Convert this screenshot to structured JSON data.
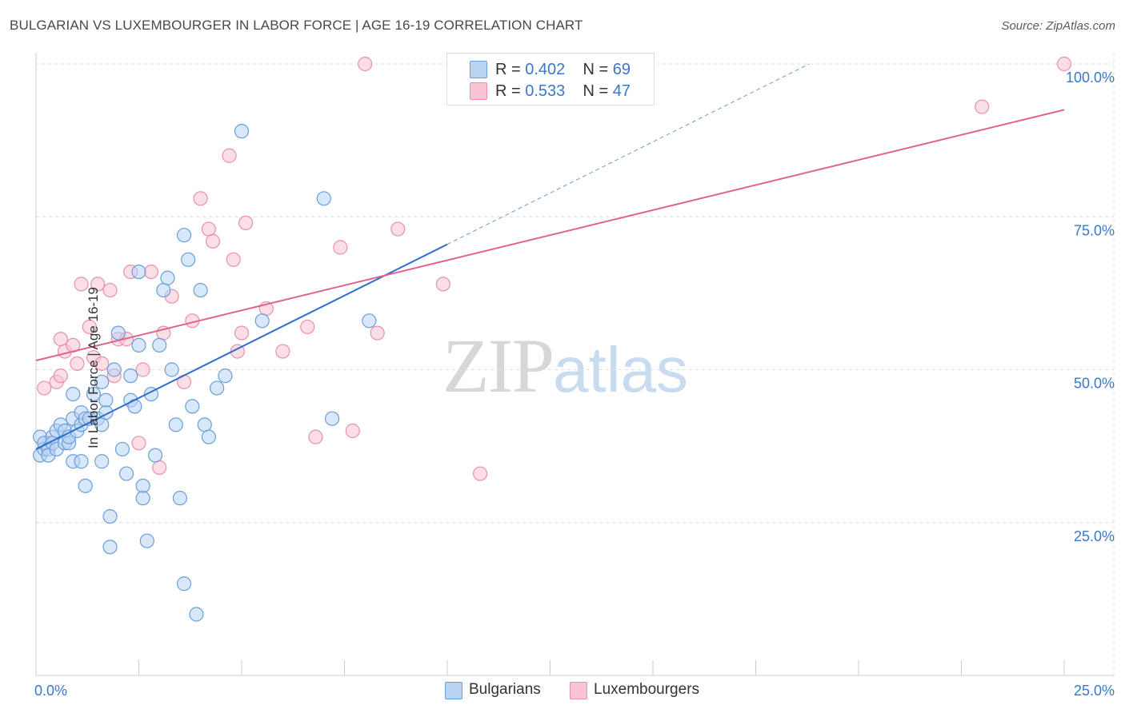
{
  "title": "BULGARIAN VS LUXEMBOURGER IN LABOR FORCE | AGE 16-19 CORRELATION CHART",
  "source": "Source: ZipAtlas.com",
  "watermark": {
    "zip": "ZIP",
    "atlas": "atlas"
  },
  "legend_top": {
    "rows": [
      {
        "r_label": "R =",
        "r_value": "0.402",
        "n_label": "N =",
        "n_value": "69"
      },
      {
        "r_label": "R =",
        "r_value": "0.533",
        "n_label": "N =",
        "n_value": "47"
      }
    ]
  },
  "legend_bottom": [
    "Bulgarians",
    "Luxembourgers"
  ],
  "colors": {
    "bulgarians_fill": "#b8d3f4",
    "bulgarians_stroke": "#6a9fd8",
    "bulgarians_line": "#2f6fc9",
    "luxembourgers_fill": "#f9c3d4",
    "luxembourgers_stroke": "#e890ae",
    "luxembourgers_line": "#e0628c",
    "tick_label": "#3a78c7",
    "grid": "#dddddd"
  },
  "chart_data": {
    "type": "scatter",
    "title": "BULGARIAN VS LUXEMBOURGER IN LABOR FORCE | AGE 16-19 CORRELATION CHART",
    "xlabel": "",
    "ylabel": "In Labor Force | Age 16-19",
    "xlim": [
      0,
      25
    ],
    "ylim": [
      0,
      102
    ],
    "x_tick_labels": [
      "0.0%",
      "25.0%"
    ],
    "y_ticks": [
      25,
      50,
      75,
      100
    ],
    "y_tick_labels": [
      "25.0%",
      "50.0%",
      "75.0%",
      "100.0%"
    ],
    "grid": "horizontal dashed",
    "legend_position": "top-center and bottom-center",
    "series": [
      {
        "name": "Bulgarians",
        "R": 0.402,
        "N": 69,
        "trend": {
          "x0": 0.0,
          "y0": 37.0,
          "x1": 10.0,
          "y1": 70.5,
          "dashed_to_x": 18.8,
          "dashed_to_y": 100.0
        },
        "points": [
          [
            0.1,
            36
          ],
          [
            0.1,
            39
          ],
          [
            0.2,
            37
          ],
          [
            0.2,
            38
          ],
          [
            0.3,
            37
          ],
          [
            0.3,
            36
          ],
          [
            0.4,
            39
          ],
          [
            0.4,
            38
          ],
          [
            0.5,
            37
          ],
          [
            0.5,
            40
          ],
          [
            0.6,
            41
          ],
          [
            0.7,
            40
          ],
          [
            0.7,
            38
          ],
          [
            0.8,
            38
          ],
          [
            0.8,
            39
          ],
          [
            0.9,
            42
          ],
          [
            0.9,
            35
          ],
          [
            1.1,
            35
          ],
          [
            1.2,
            31
          ],
          [
            0.9,
            46
          ],
          [
            1.0,
            40
          ],
          [
            1.1,
            41
          ],
          [
            1.1,
            43
          ],
          [
            1.2,
            42
          ],
          [
            1.3,
            42
          ],
          [
            1.4,
            46
          ],
          [
            1.5,
            42
          ],
          [
            1.6,
            41
          ],
          [
            1.6,
            48
          ],
          [
            1.6,
            35
          ],
          [
            1.7,
            45
          ],
          [
            1.7,
            43
          ],
          [
            1.8,
            26
          ],
          [
            1.8,
            21
          ],
          [
            1.9,
            50
          ],
          [
            2.0,
            56
          ],
          [
            2.1,
            37
          ],
          [
            2.2,
            33
          ],
          [
            2.3,
            49
          ],
          [
            2.3,
            45
          ],
          [
            2.4,
            44
          ],
          [
            2.5,
            66
          ],
          [
            2.5,
            54
          ],
          [
            2.6,
            31
          ],
          [
            2.6,
            29
          ],
          [
            2.7,
            22
          ],
          [
            2.8,
            46
          ],
          [
            2.9,
            36
          ],
          [
            3.0,
            54
          ],
          [
            3.1,
            63
          ],
          [
            3.2,
            65
          ],
          [
            3.3,
            50
          ],
          [
            3.4,
            41
          ],
          [
            3.5,
            29
          ],
          [
            3.6,
            15
          ],
          [
            3.6,
            72
          ],
          [
            3.7,
            68
          ],
          [
            3.8,
            44
          ],
          [
            3.9,
            10
          ],
          [
            4.0,
            63
          ],
          [
            4.1,
            41
          ],
          [
            4.2,
            39
          ],
          [
            4.4,
            47
          ],
          [
            4.6,
            49
          ],
          [
            5.0,
            89
          ],
          [
            5.5,
            58
          ],
          [
            7.0,
            78
          ],
          [
            7.2,
            42
          ],
          [
            8.1,
            58
          ]
        ]
      },
      {
        "name": "Luxembourgers",
        "R": 0.533,
        "N": 47,
        "trend": {
          "x0": 0.0,
          "y0": 51.5,
          "x1": 25.0,
          "y1": 92.5
        },
        "points": [
          [
            0.2,
            47
          ],
          [
            0.3,
            38
          ],
          [
            0.5,
            48
          ],
          [
            0.6,
            49
          ],
          [
            0.6,
            55
          ],
          [
            0.7,
            53
          ],
          [
            0.9,
            54
          ],
          [
            1.0,
            51
          ],
          [
            1.1,
            64
          ],
          [
            1.3,
            57
          ],
          [
            1.4,
            52
          ],
          [
            1.5,
            64
          ],
          [
            1.6,
            51
          ],
          [
            1.8,
            63
          ],
          [
            1.9,
            49
          ],
          [
            2.0,
            55
          ],
          [
            2.2,
            55
          ],
          [
            2.3,
            66
          ],
          [
            2.5,
            38
          ],
          [
            2.6,
            50
          ],
          [
            2.8,
            66
          ],
          [
            3.0,
            34
          ],
          [
            3.1,
            56
          ],
          [
            3.3,
            62
          ],
          [
            3.6,
            48
          ],
          [
            3.8,
            58
          ],
          [
            4.0,
            78
          ],
          [
            4.2,
            73
          ],
          [
            4.3,
            71
          ],
          [
            4.7,
            85
          ],
          [
            4.8,
            68
          ],
          [
            5.0,
            56
          ],
          [
            5.1,
            74
          ],
          [
            5.6,
            60
          ],
          [
            6.0,
            53
          ],
          [
            6.6,
            57
          ],
          [
            6.8,
            39
          ],
          [
            7.4,
            70
          ],
          [
            7.7,
            40
          ],
          [
            8.0,
            100
          ],
          [
            8.3,
            56
          ],
          [
            8.8,
            73
          ],
          [
            9.9,
            64
          ],
          [
            10.8,
            33
          ],
          [
            23.0,
            93
          ],
          [
            25.0,
            100
          ],
          [
            4.9,
            53
          ]
        ]
      }
    ]
  }
}
